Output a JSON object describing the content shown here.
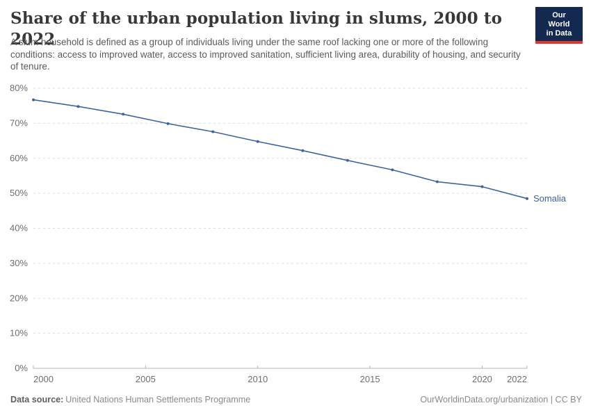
{
  "header": {
    "title": "Share of the urban population living in slums, 2000 to 2022",
    "subtitle": "A slum household is defined as a group of individuals living under the same roof lacking one or more of the following conditions: access to improved water, access to improved sanitation, sufficient living area, durability of housing, and security of tenure.",
    "logo": {
      "line1": "Our World",
      "line2": "in Data"
    }
  },
  "chart_data": {
    "type": "line",
    "title": "Share of the urban population living in slums, 2000 to 2022",
    "entity": "Somalia",
    "x": [
      2000,
      2002,
      2004,
      2006,
      2008,
      2010,
      2012,
      2014,
      2016,
      2018,
      2020,
      2022
    ],
    "series": [
      {
        "name": "Somalia",
        "color": "#3e63a2",
        "values": [
          76.7,
          74.8,
          72.6,
          69.9,
          67.6,
          64.8,
          62.2,
          59.4,
          56.7,
          53.3,
          51.9,
          48.5
        ]
      }
    ],
    "xlabel": "",
    "ylabel": "",
    "xlim": [
      2000,
      2022
    ],
    "ylim": [
      0,
      80
    ],
    "y_tick_labels": [
      "0%",
      "10%",
      "20%",
      "30%",
      "40%",
      "50%",
      "60%",
      "70%",
      "80%"
    ],
    "x_ticks": [
      2000,
      2005,
      2010,
      2015,
      2020,
      2022
    ],
    "grid": "horizontal-dashed",
    "legend_position": "end-of-line-label"
  },
  "footer": {
    "datasource_label": "Data source:",
    "datasource_value": "United Nations Human Settlements Programme",
    "attribution": "OurWorldinData.org/urbanization | CC BY"
  },
  "colors": {
    "accent_blue": "#3e63a2",
    "logo_navy": "#13294f",
    "logo_red": "#e0362b",
    "gridline": "#dcdcdc",
    "axis": "#b3b3b3",
    "tick_label": "#6e6e6e"
  }
}
